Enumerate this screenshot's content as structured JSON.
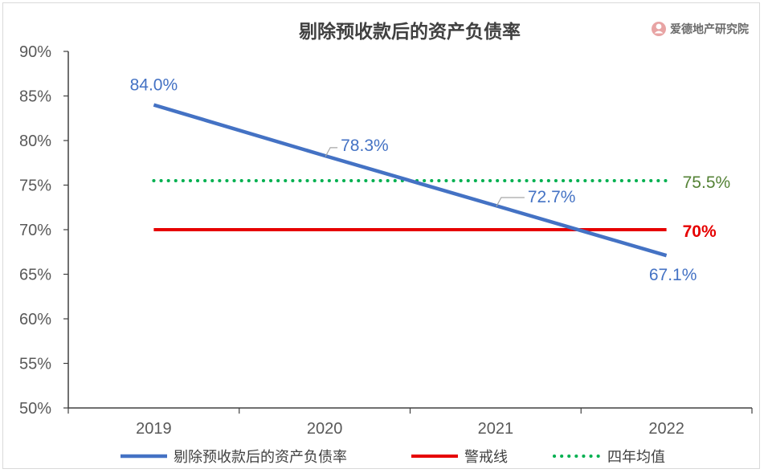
{
  "brand": {
    "name": "爱德地产研究院",
    "icon": "person-logo-icon",
    "icon_color": "#e8a4a4"
  },
  "chart_data": {
    "type": "line",
    "title": "剔除预收款后的资产负债率",
    "categories": [
      "2019",
      "2020",
      "2021",
      "2022"
    ],
    "x_tick_labels": [
      "2019",
      "2020",
      "2021",
      "2022"
    ],
    "ylim": [
      50,
      90
    ],
    "y_tick_labels": [
      "90%",
      "85%",
      "80%",
      "75%",
      "70%",
      "65%",
      "60%",
      "55%",
      "50%"
    ],
    "y_ticks": [
      90,
      85,
      80,
      75,
      70,
      65,
      60,
      55,
      50
    ],
    "grid": false,
    "legend_position": "bottom",
    "series": [
      {
        "name": "剔除预收款后的资产负债率",
        "values": [
          84.0,
          78.3,
          72.7,
          67.1
        ],
        "value_labels": [
          "84.0%",
          "78.3%",
          "72.7%",
          "67.1%"
        ],
        "color": "#4472c4",
        "style": "solid"
      },
      {
        "name": "警戒线",
        "values": [
          70,
          70,
          70,
          70
        ],
        "end_label": "70%",
        "color": "#e60000",
        "style": "solid"
      },
      {
        "name": "四年均值",
        "values": [
          75.5,
          75.5,
          75.5,
          75.5
        ],
        "end_label": "75.5%",
        "color": "#00b050",
        "label_color": "#548235",
        "style": "dotted"
      }
    ]
  }
}
